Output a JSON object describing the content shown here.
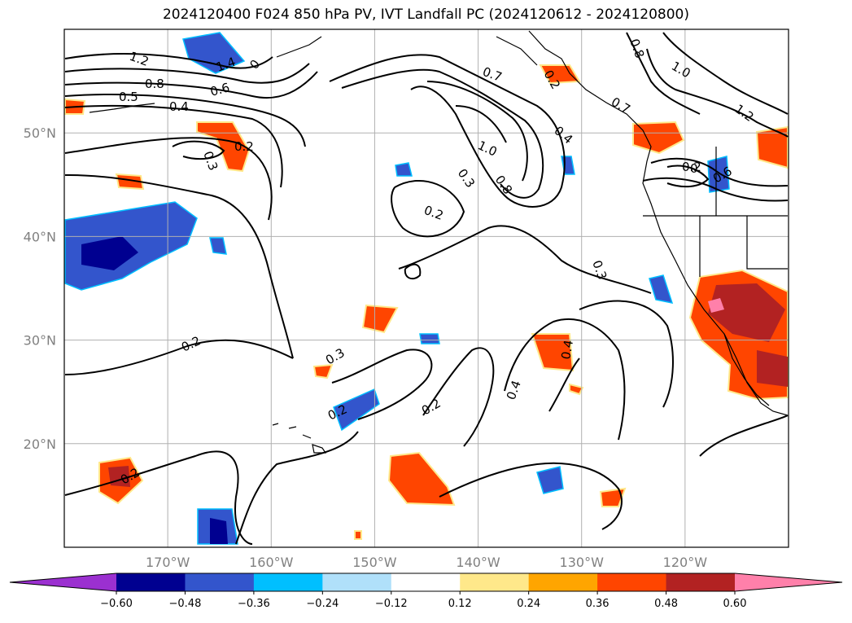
{
  "title": "2024120400 F024 850 hPa PV, IVT Landfall PC (2024120612 - 2024120800)",
  "map": {
    "lat_range": [
      10,
      60
    ],
    "lon_range": [
      -180,
      -110
    ],
    "lat_ticks": [
      {
        "value": 20,
        "label": "20°N"
      },
      {
        "value": 30,
        "label": "30°N"
      },
      {
        "value": 40,
        "label": "40°N"
      },
      {
        "value": 50,
        "label": "50°N"
      }
    ],
    "lon_ticks": [
      {
        "value": -170,
        "label": "170°W"
      },
      {
        "value": -160,
        "label": "160°W"
      },
      {
        "value": -150,
        "label": "150°W"
      },
      {
        "value": -140,
        "label": "140°W"
      },
      {
        "value": -130,
        "label": "130°W"
      },
      {
        "value": -120,
        "label": "120°W"
      }
    ],
    "grid": true
  },
  "contour_labels": [
    "1.2",
    "1.4",
    "0",
    "0.8",
    "0.6",
    "0.5",
    "0.4",
    "0.2",
    "0.3",
    "0.2",
    "0.2",
    "0.7",
    "1.0",
    "0.4",
    "0.3",
    "0.8",
    "0.7",
    "0.8",
    "1.0",
    "1.2",
    "0",
    "0.6",
    "0.3",
    "0.2",
    "0.3",
    "0.4",
    "0.2",
    "0.2",
    "0.2",
    "0.2",
    "0.4"
  ],
  "colorbar": {
    "tick_labels": [
      "−0.60",
      "−0.48",
      "−0.36",
      "−0.24",
      "−0.12",
      "0.12",
      "0.24",
      "0.36",
      "0.48",
      "0.60"
    ],
    "colors": [
      "#9b30d0",
      "#000090",
      "#3355cc",
      "#00bfff",
      "#b0e0fa",
      "#ffffff",
      "#ffe88a",
      "#ffa500",
      "#ff4500",
      "#b22222",
      "#ff80aa"
    ],
    "extend": "both"
  }
}
